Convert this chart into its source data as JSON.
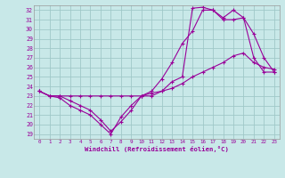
{
  "xlabel": "Windchill (Refroidissement éolien,°C)",
  "bg_color": "#c8e8e8",
  "grid_color": "#a0c8c8",
  "line_color": "#990099",
  "xlim": [
    -0.5,
    23.5
  ],
  "ylim": [
    18.5,
    32.5
  ],
  "yticks": [
    19,
    20,
    21,
    22,
    23,
    24,
    25,
    26,
    27,
    28,
    29,
    30,
    31,
    32
  ],
  "xticks": [
    0,
    1,
    2,
    3,
    4,
    5,
    6,
    7,
    8,
    9,
    10,
    11,
    12,
    13,
    14,
    15,
    16,
    17,
    18,
    19,
    20,
    21,
    22,
    23
  ],
  "line1_x": [
    0,
    1,
    2,
    3,
    4,
    5,
    6,
    7,
    8,
    9,
    10,
    11,
    12,
    13,
    14,
    15,
    16,
    17,
    18,
    19,
    20,
    21,
    22,
    23
  ],
  "line1_y": [
    23.5,
    23.0,
    23.0,
    22.5,
    22.0,
    21.5,
    20.5,
    19.3,
    20.3,
    21.5,
    23.0,
    23.0,
    23.5,
    24.5,
    25.0,
    32.2,
    32.3,
    32.0,
    31.2,
    32.0,
    31.2,
    29.5,
    27.0,
    25.5
  ],
  "line2_x": [
    0,
    1,
    2,
    3,
    4,
    5,
    6,
    7,
    8,
    9,
    10,
    11,
    12,
    13,
    14,
    15,
    16,
    17,
    18,
    19,
    20,
    21,
    22,
    23
  ],
  "line2_y": [
    23.5,
    23.0,
    22.8,
    22.0,
    21.5,
    21.0,
    20.0,
    19.0,
    20.8,
    22.0,
    23.0,
    23.5,
    24.8,
    26.5,
    28.5,
    29.8,
    32.0,
    32.0,
    31.0,
    31.0,
    31.2,
    27.0,
    25.5,
    25.5
  ],
  "line3_x": [
    0,
    1,
    2,
    3,
    4,
    5,
    6,
    7,
    8,
    9,
    10,
    11,
    12,
    13,
    14,
    15,
    16,
    17,
    18,
    19,
    20,
    21,
    22,
    23
  ],
  "line3_y": [
    23.5,
    23.0,
    23.0,
    23.0,
    23.0,
    23.0,
    23.0,
    23.0,
    23.0,
    23.0,
    23.0,
    23.3,
    23.5,
    23.8,
    24.3,
    25.0,
    25.5,
    26.0,
    26.5,
    27.2,
    27.5,
    26.5,
    26.0,
    25.8
  ]
}
